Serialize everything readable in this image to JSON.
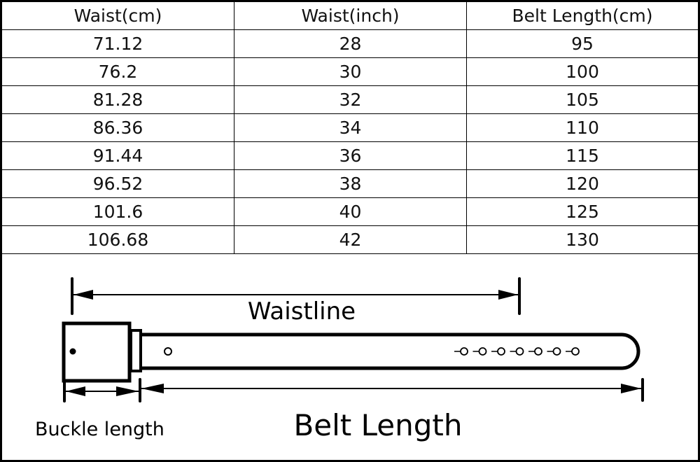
{
  "table": {
    "headers": [
      "Waist(cm)",
      "Waist(inch)",
      "Belt Length(cm)"
    ],
    "rows": [
      [
        "71.12",
        "28",
        "95"
      ],
      [
        "76.2",
        "30",
        "100"
      ],
      [
        "81.28",
        "32",
        "105"
      ],
      [
        "86.36",
        "34",
        "110"
      ],
      [
        "91.44",
        "36",
        "115"
      ],
      [
        "96.52",
        "38",
        "120"
      ],
      [
        "101.6",
        "40",
        "125"
      ],
      [
        "106.68",
        "42",
        "130"
      ]
    ]
  },
  "diagram": {
    "waistline_label": "Waistline",
    "buckle_length_label": "Buckle length",
    "belt_length_label": "Belt Length"
  }
}
